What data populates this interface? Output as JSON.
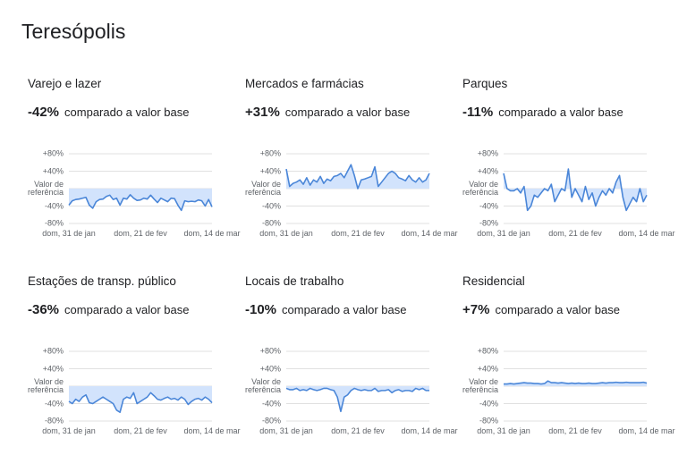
{
  "title": "Teresópolis",
  "chart_data": [
    {
      "type": "line",
      "title": "Varejo e lazer",
      "summary": {
        "value": -42,
        "label": "-42%"
      },
      "summary_text": "comparado a valor base",
      "color": "#4a86d8",
      "area_color": "#d2e3fc",
      "grid": true,
      "categories": [
        "dom, 31 de jan",
        null,
        null,
        null,
        null,
        null,
        null,
        null,
        null,
        null,
        null,
        null,
        null,
        null,
        null,
        null,
        null,
        null,
        null,
        null,
        null,
        "dom, 21 de fev",
        null,
        null,
        null,
        null,
        null,
        null,
        null,
        null,
        null,
        null,
        null,
        null,
        null,
        null,
        null,
        null,
        null,
        null,
        null,
        null,
        "dom, 14 de mar"
      ],
      "values": [
        -38,
        -28,
        -25,
        -24,
        -22,
        -20,
        -38,
        -45,
        -30,
        -25,
        -24,
        -18,
        -15,
        -25,
        -22,
        -38,
        -22,
        -24,
        -14,
        -22,
        -27,
        -26,
        -22,
        -24,
        -15,
        -24,
        -32,
        -22,
        -26,
        -30,
        -22,
        -23,
        -38,
        -50,
        -28,
        -30,
        -29,
        -30,
        -26,
        -28,
        -40,
        -25,
        -42
      ],
      "ylim": [
        -80,
        80
      ],
      "yticks": [
        {
          "value": 80,
          "label": "+80%"
        },
        {
          "value": 40,
          "label": "+40%"
        },
        {
          "value": 0,
          "label": "Valor de referência"
        },
        {
          "value": -40,
          "label": "-40%"
        },
        {
          "value": -80,
          "label": "-80%"
        }
      ]
    },
    {
      "type": "line",
      "title": "Mercados e farmácias",
      "summary": {
        "value": 31,
        "label": "+31%"
      },
      "summary_text": "comparado a valor base",
      "color": "#4a86d8",
      "area_color": "#d2e3fc",
      "grid": true,
      "categories": [
        "dom, 31 de jan",
        null,
        null,
        null,
        null,
        null,
        null,
        null,
        null,
        null,
        null,
        null,
        null,
        null,
        null,
        null,
        null,
        null,
        null,
        null,
        null,
        "dom, 21 de fev",
        null,
        null,
        null,
        null,
        null,
        null,
        null,
        null,
        null,
        null,
        null,
        null,
        null,
        null,
        null,
        null,
        null,
        null,
        null,
        null,
        "dom, 14 de mar"
      ],
      "values": [
        45,
        5,
        12,
        15,
        20,
        10,
        25,
        8,
        20,
        15,
        28,
        12,
        22,
        18,
        28,
        30,
        35,
        25,
        40,
        55,
        30,
        0,
        20,
        22,
        25,
        28,
        50,
        5,
        15,
        25,
        35,
        40,
        35,
        25,
        22,
        18,
        30,
        20,
        15,
        25,
        15,
        20,
        35
      ],
      "ylim": [
        -80,
        80
      ],
      "yticks": [
        {
          "value": 80,
          "label": "+80%"
        },
        {
          "value": 40,
          "label": "+40%"
        },
        {
          "value": 0,
          "label": "Valor de referência"
        },
        {
          "value": -40,
          "label": "-40%"
        },
        {
          "value": -80,
          "label": "-80%"
        }
      ]
    },
    {
      "type": "line",
      "title": "Parques",
      "summary": {
        "value": -11,
        "label": "-11%"
      },
      "summary_text": "comparado a valor base",
      "color": "#4a86d8",
      "area_color": "#d2e3fc",
      "grid": true,
      "categories": [
        "dom, 31 de jan",
        null,
        null,
        null,
        null,
        null,
        null,
        null,
        null,
        null,
        null,
        null,
        null,
        null,
        null,
        null,
        null,
        null,
        null,
        null,
        null,
        "dom, 21 de fev",
        null,
        null,
        null,
        null,
        null,
        null,
        null,
        null,
        null,
        null,
        null,
        null,
        null,
        null,
        null,
        null,
        null,
        null,
        null,
        null,
        "dom, 14 de mar"
      ],
      "values": [
        35,
        0,
        -5,
        -5,
        0,
        -10,
        5,
        -50,
        -40,
        -15,
        -20,
        -10,
        0,
        -5,
        10,
        -30,
        -15,
        0,
        -5,
        45,
        -20,
        0,
        -15,
        -30,
        5,
        -25,
        -10,
        -40,
        -20,
        -5,
        -15,
        0,
        -10,
        15,
        30,
        -20,
        -50,
        -35,
        -20,
        -30,
        0,
        -30,
        -15
      ],
      "ylim": [
        -80,
        80
      ],
      "yticks": [
        {
          "value": 80,
          "label": "+80%"
        },
        {
          "value": 40,
          "label": "+40%"
        },
        {
          "value": 0,
          "label": "Valor de referência"
        },
        {
          "value": -40,
          "label": "-40%"
        },
        {
          "value": -80,
          "label": "-80%"
        }
      ]
    },
    {
      "type": "line",
      "title": "Estações de transp. público",
      "summary": {
        "value": -36,
        "label": "-36%"
      },
      "summary_text": "comparado a valor base",
      "color": "#4a86d8",
      "area_color": "#d2e3fc",
      "grid": true,
      "categories": [
        "dom, 31 de jan",
        null,
        null,
        null,
        null,
        null,
        null,
        null,
        null,
        null,
        null,
        null,
        null,
        null,
        null,
        null,
        null,
        null,
        null,
        null,
        null,
        "dom, 21 de fev",
        null,
        null,
        null,
        null,
        null,
        null,
        null,
        null,
        null,
        null,
        null,
        null,
        null,
        null,
        null,
        null,
        null,
        null,
        null,
        null,
        "dom, 14 de mar"
      ],
      "values": [
        -35,
        -40,
        -30,
        -35,
        -25,
        -20,
        -38,
        -40,
        -35,
        -30,
        -25,
        -30,
        -35,
        -40,
        -55,
        -60,
        -30,
        -25,
        -28,
        -15,
        -40,
        -35,
        -30,
        -25,
        -15,
        -22,
        -30,
        -32,
        -28,
        -25,
        -30,
        -28,
        -32,
        -25,
        -30,
        -42,
        -35,
        -30,
        -28,
        -32,
        -25,
        -30,
        -38
      ],
      "ylim": [
        -80,
        80
      ],
      "yticks": [
        {
          "value": 80,
          "label": "+80%"
        },
        {
          "value": 40,
          "label": "+40%"
        },
        {
          "value": 0,
          "label": "Valor de referência"
        },
        {
          "value": -40,
          "label": "-40%"
        },
        {
          "value": -80,
          "label": "-80%"
        }
      ]
    },
    {
      "type": "line",
      "title": "Locais de trabalho",
      "summary": {
        "value": -10,
        "label": "-10%"
      },
      "summary_text": "comparado a valor base",
      "color": "#4a86d8",
      "area_color": "#d2e3fc",
      "grid": true,
      "categories": [
        "dom, 31 de jan",
        null,
        null,
        null,
        null,
        null,
        null,
        null,
        null,
        null,
        null,
        null,
        null,
        null,
        null,
        null,
        null,
        null,
        null,
        null,
        null,
        "dom, 21 de fev",
        null,
        null,
        null,
        null,
        null,
        null,
        null,
        null,
        null,
        null,
        null,
        null,
        null,
        null,
        null,
        null,
        null,
        null,
        null,
        null,
        "dom, 14 de mar"
      ],
      "values": [
        -5,
        -8,
        -8,
        -5,
        -10,
        -8,
        -10,
        -5,
        -8,
        -10,
        -8,
        -5,
        -5,
        -8,
        -10,
        -25,
        -58,
        -25,
        -20,
        -10,
        -5,
        -8,
        -10,
        -8,
        -10,
        -10,
        -5,
        -12,
        -10,
        -10,
        -8,
        -15,
        -10,
        -8,
        -12,
        -10,
        -10,
        -12,
        -5,
        -8,
        -5,
        -10,
        -10
      ],
      "ylim": [
        -80,
        80
      ],
      "yticks": [
        {
          "value": 80,
          "label": "+80%"
        },
        {
          "value": 40,
          "label": "+40%"
        },
        {
          "value": 0,
          "label": "Valor de referência"
        },
        {
          "value": -40,
          "label": "-40%"
        },
        {
          "value": -80,
          "label": "-80%"
        }
      ]
    },
    {
      "type": "line",
      "title": "Residencial",
      "summary": {
        "value": 7,
        "label": "+7%"
      },
      "summary_text": "comparado a valor base",
      "color": "#4a86d8",
      "area_color": "#d2e3fc",
      "grid": true,
      "categories": [
        "dom, 31 de jan",
        null,
        null,
        null,
        null,
        null,
        null,
        null,
        null,
        null,
        null,
        null,
        null,
        null,
        null,
        null,
        null,
        null,
        null,
        null,
        null,
        "dom, 21 de fev",
        null,
        null,
        null,
        null,
        null,
        null,
        null,
        null,
        null,
        null,
        null,
        null,
        null,
        null,
        null,
        null,
        null,
        null,
        null,
        null,
        "dom, 14 de mar"
      ],
      "values": [
        5,
        5,
        6,
        5,
        6,
        7,
        8,
        7,
        7,
        6,
        6,
        5,
        6,
        12,
        8,
        8,
        7,
        8,
        7,
        6,
        7,
        6,
        7,
        6,
        6,
        7,
        6,
        6,
        7,
        8,
        7,
        8,
        8,
        9,
        8,
        8,
        9,
        8,
        8,
        8,
        8,
        9,
        7
      ],
      "ylim": [
        -80,
        80
      ],
      "yticks": [
        {
          "value": 80,
          "label": "+80%"
        },
        {
          "value": 40,
          "label": "+40%"
        },
        {
          "value": 0,
          "label": "Valor de referência"
        },
        {
          "value": -40,
          "label": "-40%"
        },
        {
          "value": -80,
          "label": "-80%"
        }
      ]
    }
  ]
}
